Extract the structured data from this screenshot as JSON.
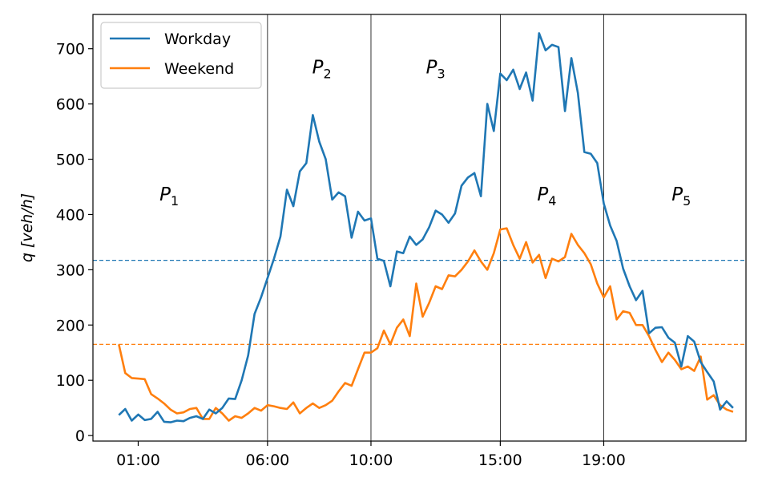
{
  "chart_data": {
    "type": "line",
    "title": "",
    "xlabel": "",
    "ylabel": "q [veh/h]",
    "ylabel_parts": {
      "main": "q",
      "unit": "[veh/h]"
    },
    "xlim_hours": [
      -0.75,
      24.5
    ],
    "ylim": [
      -10,
      762
    ],
    "y_ticks": [
      0,
      100,
      200,
      300,
      400,
      500,
      600,
      700
    ],
    "x_ticks": [
      {
        "hour": 1,
        "label": "01:00"
      },
      {
        "hour": 6,
        "label": "06:00"
      },
      {
        "hour": 10,
        "label": "10:00"
      },
      {
        "hour": 15,
        "label": "15:00"
      },
      {
        "hour": 19,
        "label": "19:00"
      }
    ],
    "period_boundaries_hours": [
      6,
      10,
      15,
      19
    ],
    "periods": [
      {
        "label": "P",
        "sub": "1",
        "x_hour": 2.2,
        "y": 425
      },
      {
        "label": "P",
        "sub": "2",
        "x_hour": 8.1,
        "y": 655
      },
      {
        "label": "P",
        "sub": "3",
        "x_hour": 12.5,
        "y": 655
      },
      {
        "label": "P",
        "sub": "4",
        "x_hour": 16.8,
        "y": 425
      },
      {
        "label": "P",
        "sub": "5",
        "x_hour": 22.0,
        "y": 425
      }
    ],
    "grid": false,
    "legend_position": "top-left",
    "series": [
      {
        "name": "Workday",
        "color": "#1f77b4",
        "mean_line": 317,
        "x": [
          0.25,
          0.5,
          0.75,
          1.0,
          1.25,
          1.5,
          1.75,
          2.0,
          2.25,
          2.5,
          2.75,
          3.0,
          3.25,
          3.5,
          3.75,
          4.0,
          4.25,
          4.5,
          4.75,
          5.0,
          5.25,
          5.5,
          5.75,
          6.0,
          6.25,
          6.5,
          6.75,
          7.0,
          7.25,
          7.5,
          7.75,
          8.0,
          8.25,
          8.5,
          8.75,
          9.0,
          9.25,
          9.5,
          9.75,
          10.0,
          10.25,
          10.5,
          10.75,
          11.0,
          11.25,
          11.5,
          11.75,
          12.0,
          12.25,
          12.5,
          12.75,
          13.0,
          13.25,
          13.5,
          13.75,
          14.0,
          14.25,
          14.5,
          14.75,
          15.0,
          15.25,
          15.5,
          15.75,
          16.0,
          16.25,
          16.5,
          16.75,
          17.0,
          17.25,
          17.5,
          17.75,
          18.0,
          18.25,
          18.5,
          18.75,
          19.0,
          19.25,
          19.5,
          19.75,
          20.0,
          20.25,
          20.5,
          20.75,
          21.0,
          21.25,
          21.5,
          21.75,
          22.0,
          22.25,
          22.5,
          22.75,
          23.0,
          23.25,
          23.5,
          23.75,
          24.0
        ],
        "y": [
          37,
          48,
          27,
          38,
          28,
          30,
          43,
          25,
          24,
          27,
          26,
          32,
          35,
          30,
          47,
          40,
          50,
          67,
          66,
          100,
          145,
          220,
          250,
          285,
          320,
          360,
          445,
          415,
          478,
          493,
          580,
          532,
          500,
          427,
          440,
          433,
          358,
          405,
          389,
          393,
          320,
          316,
          270,
          333,
          330,
          360,
          345,
          355,
          377,
          407,
          400,
          385,
          402,
          452,
          467,
          475,
          433,
          600,
          551,
          655,
          643,
          662,
          627,
          657,
          606,
          728,
          697,
          707,
          703,
          587,
          683,
          620,
          513,
          510,
          493,
          420,
          380,
          352,
          302,
          270,
          245,
          262,
          185,
          195,
          196,
          177,
          168,
          125,
          180,
          170,
          133,
          115,
          98,
          47,
          62,
          50
        ]
      },
      {
        "name": "Weekend",
        "color": "#ff7f0e",
        "mean_line": 165,
        "x": [
          0.25,
          0.5,
          0.75,
          1.0,
          1.25,
          1.5,
          1.75,
          2.0,
          2.25,
          2.5,
          2.75,
          3.0,
          3.25,
          3.5,
          3.75,
          4.0,
          4.25,
          4.5,
          4.75,
          5.0,
          5.25,
          5.5,
          5.75,
          6.0,
          6.25,
          6.5,
          6.75,
          7.0,
          7.25,
          7.5,
          7.75,
          8.0,
          8.25,
          8.5,
          8.75,
          9.0,
          9.25,
          9.5,
          9.75,
          10.0,
          10.25,
          10.5,
          10.75,
          11.0,
          11.25,
          11.5,
          11.75,
          12.0,
          12.25,
          12.5,
          12.75,
          13.0,
          13.25,
          13.5,
          13.75,
          14.0,
          14.25,
          14.5,
          14.75,
          15.0,
          15.25,
          15.5,
          15.75,
          16.0,
          16.25,
          16.5,
          16.75,
          17.0,
          17.25,
          17.5,
          17.75,
          18.0,
          18.25,
          18.5,
          18.75,
          19.0,
          19.25,
          19.5,
          19.75,
          20.0,
          20.25,
          20.5,
          20.75,
          21.0,
          21.25,
          21.5,
          21.75,
          22.0,
          22.25,
          22.5,
          22.75,
          23.0,
          23.25,
          23.5,
          23.75,
          24.0
        ],
        "y": [
          165,
          113,
          104,
          103,
          102,
          75,
          67,
          58,
          47,
          40,
          42,
          48,
          50,
          30,
          30,
          50,
          40,
          27,
          35,
          32,
          40,
          50,
          45,
          55,
          53,
          50,
          48,
          60,
          40,
          50,
          58,
          50,
          55,
          63,
          80,
          95,
          90,
          120,
          150,
          150,
          158,
          190,
          165,
          195,
          210,
          180,
          275,
          215,
          240,
          270,
          265,
          290,
          288,
          300,
          315,
          335,
          315,
          300,
          330,
          373,
          375,
          345,
          320,
          350,
          313,
          327,
          285,
          320,
          315,
          323,
          365,
          345,
          330,
          310,
          275,
          250,
          270,
          210,
          225,
          222,
          200,
          200,
          180,
          155,
          133,
          150,
          137,
          120,
          125,
          117,
          143,
          65,
          73,
          55,
          47,
          43
        ]
      }
    ]
  }
}
